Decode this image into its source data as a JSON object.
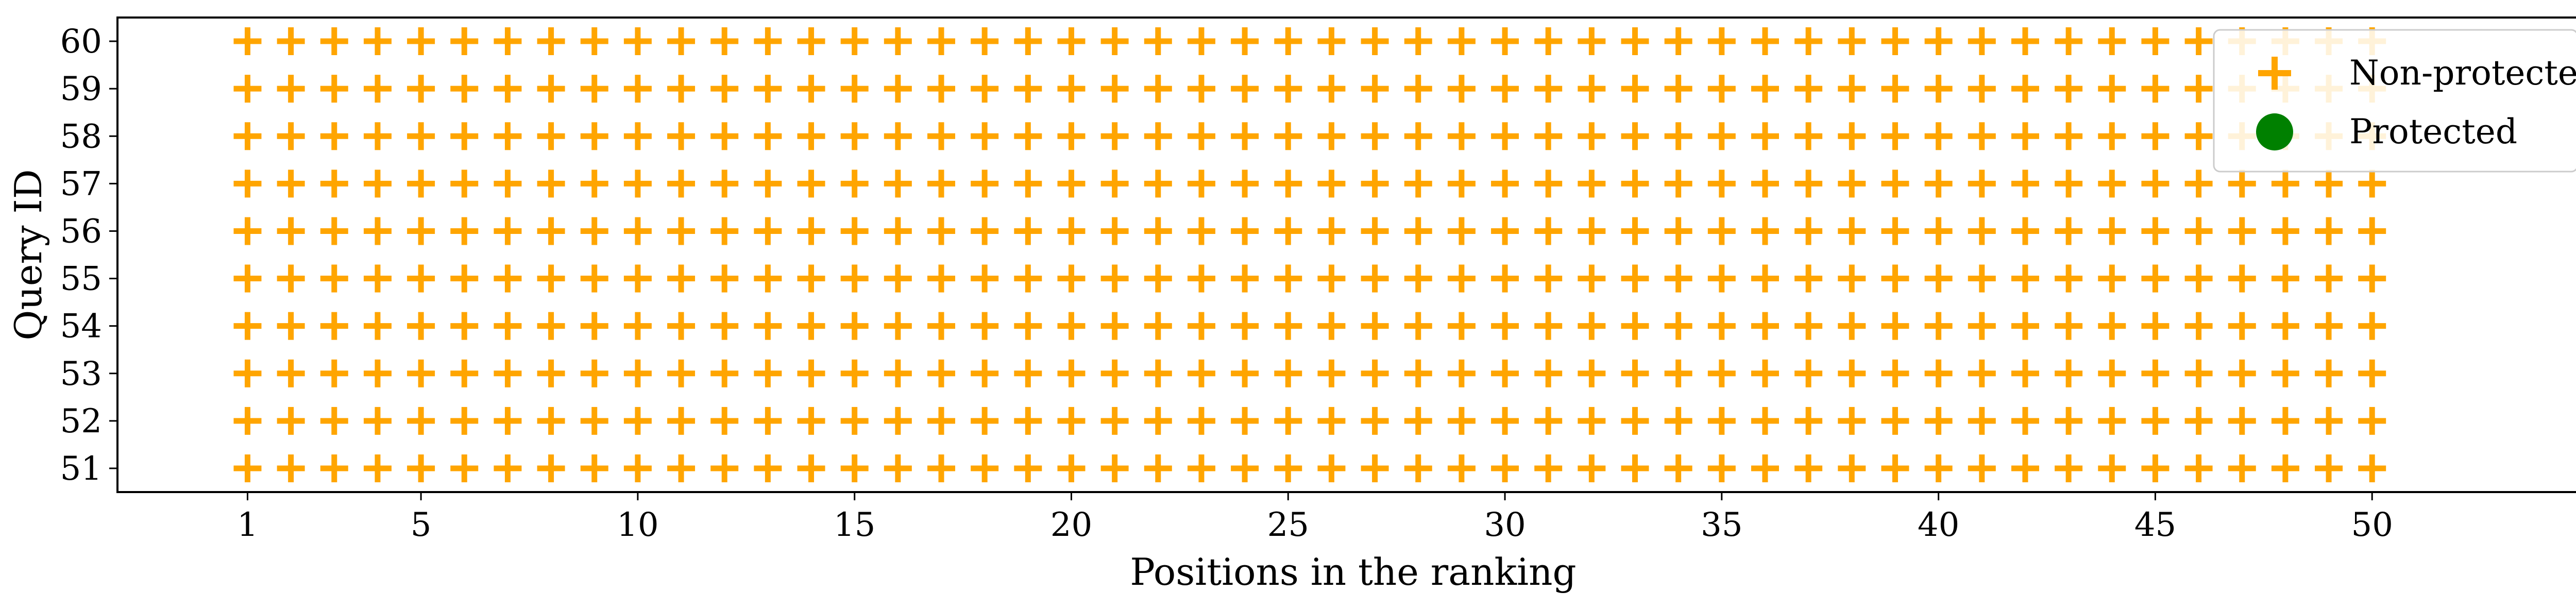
{
  "chart_data": {
    "type": "scatter",
    "title": "",
    "xlabel": "Positions in the ranking",
    "ylabel": "Query ID",
    "xlim": [
      -2,
      55
    ],
    "ylim": [
      50.5,
      60.5
    ],
    "xticks": [
      1,
      5,
      10,
      15,
      20,
      25,
      30,
      35,
      40,
      45,
      50
    ],
    "yticks": [
      51,
      52,
      53,
      54,
      55,
      56,
      57,
      58,
      59,
      60
    ],
    "grid": false,
    "legend": "top-right",
    "series": [
      {
        "name": "Non-protected",
        "marker": "plus",
        "color": "#ffa500",
        "x_range": [
          1,
          50
        ],
        "y_values": [
          51,
          52,
          53,
          54,
          55,
          56,
          57,
          58,
          59,
          60
        ]
      },
      {
        "name": "Protected",
        "marker": "circle",
        "color": "#008000",
        "points": []
      }
    ]
  }
}
